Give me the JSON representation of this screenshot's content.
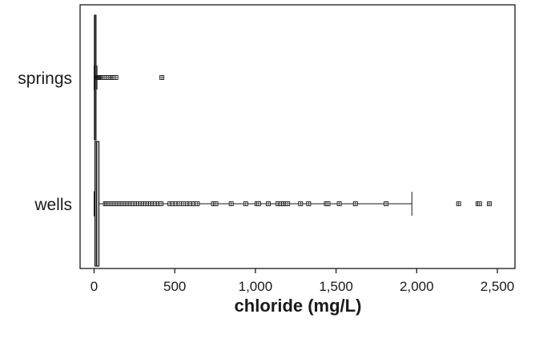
{
  "chart_data": {
    "type": "boxplot",
    "title": "",
    "xlabel": "chloride (mg/L)",
    "ylabel": "",
    "xlim": [
      -75,
      2560
    ],
    "xticks": [
      0,
      500,
      1000,
      1500,
      2000,
      2500
    ],
    "xtick_labels": [
      "0",
      "500",
      "1,000",
      "1,500",
      "2,000",
      "2,500"
    ],
    "grid": false,
    "legend": "none",
    "categories": [
      "springs",
      "wells"
    ],
    "series": [
      {
        "category": "springs",
        "min": 0,
        "q1": 2,
        "median": 4,
        "q3": 7,
        "max": 18,
        "outliers": [
          19,
          21,
          24,
          27,
          30,
          34,
          38,
          42,
          47,
          52,
          58,
          65,
          75,
          88,
          100,
          110,
          118,
          125,
          135,
          420
        ]
      },
      {
        "category": "wells",
        "min": 0,
        "q1": 5,
        "median": 15,
        "q3": 30,
        "max": 1970,
        "outliers": [
          70,
          78,
          86,
          95,
          105,
          115,
          125,
          135,
          145,
          155,
          165,
          175,
          185,
          195,
          205,
          215,
          225,
          235,
          245,
          260,
          275,
          290,
          305,
          320,
          335,
          350,
          365,
          380,
          400,
          415,
          470,
          490,
          510,
          530,
          555,
          580,
          600,
          620,
          640,
          740,
          755,
          850,
          940,
          1010,
          1020,
          1080,
          1140,
          1160,
          1175,
          1190,
          1200,
          1280,
          1330,
          1440,
          1450,
          1520,
          1620,
          1810,
          2260,
          2380,
          2390,
          2450
        ]
      }
    ]
  }
}
